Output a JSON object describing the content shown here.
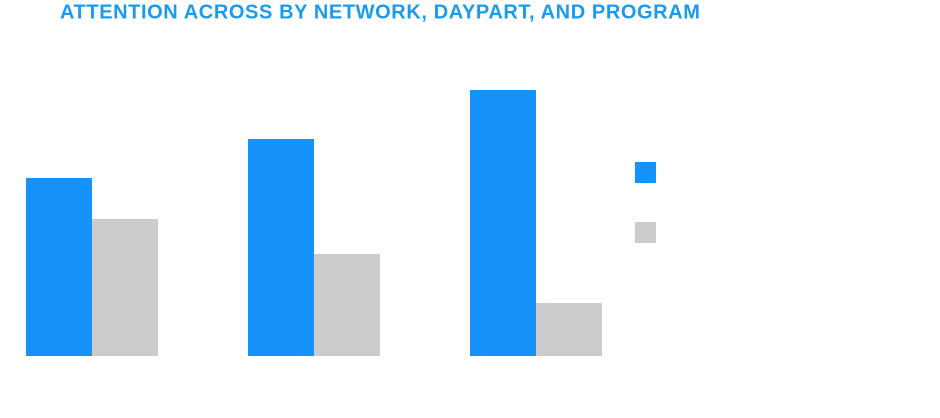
{
  "chart_data": {
    "type": "bar",
    "title": "ATTENTION ACROSS BY NETWORK, DAYPART, AND PROGRAM",
    "title_color": "#1a9bf0",
    "categories": [
      null,
      null,
      null
    ],
    "series": [
      {
        "color": "#1593fb",
        "values": [
          178,
          217,
          266
        ]
      },
      {
        "color": "#cccccc",
        "values": [
          137,
          102,
          53
        ]
      }
    ],
    "ylim": [
      0,
      300
    ],
    "legend": "right"
  }
}
